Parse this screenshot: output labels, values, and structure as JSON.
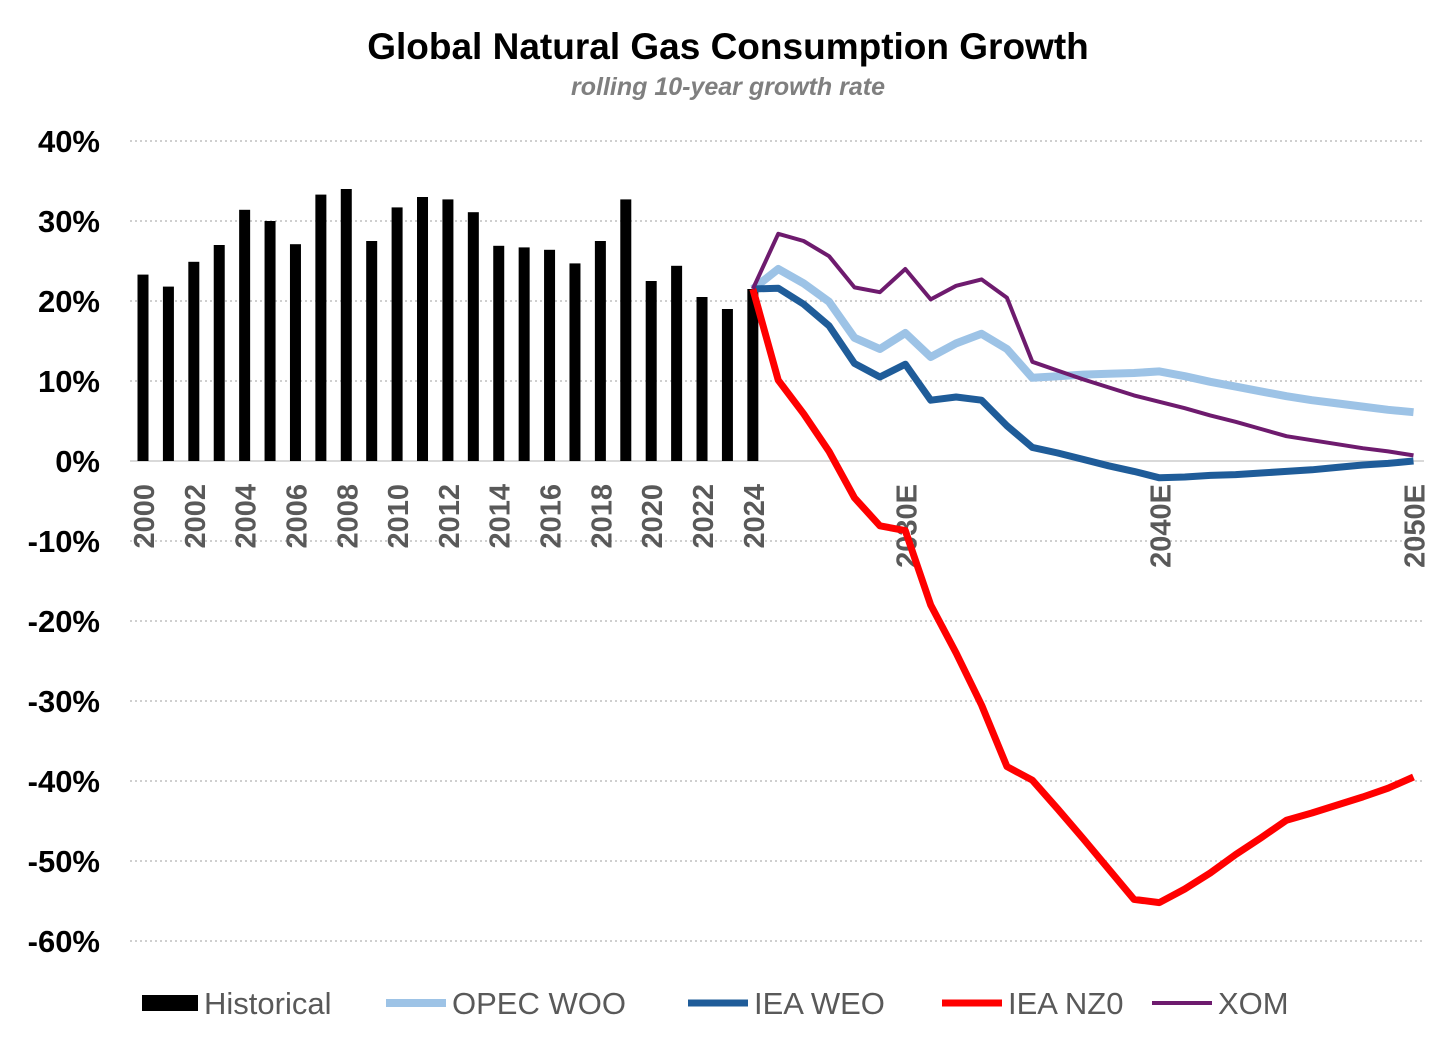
{
  "chart_data": {
    "type": "bar+line",
    "title": "Global Natural Gas Consumption Growth",
    "subtitle": "rolling 10-year growth rate",
    "xlabel": "",
    "ylabel": "",
    "ylim": [
      -60,
      40
    ],
    "yticks": [
      40,
      30,
      20,
      10,
      0,
      -10,
      -20,
      -30,
      -40,
      -50,
      -60
    ],
    "ytick_labels": [
      "40%",
      "30%",
      "20%",
      "10%",
      "0%",
      "-10%",
      "-20%",
      "-30%",
      "-40%",
      "-50%",
      "-60%"
    ],
    "xrange": [
      2000,
      2050
    ],
    "xtick_labels": [
      {
        "year": 2000,
        "label": "2000"
      },
      {
        "year": 2002,
        "label": "2002"
      },
      {
        "year": 2004,
        "label": "2004"
      },
      {
        "year": 2006,
        "label": "2006"
      },
      {
        "year": 2008,
        "label": "2008"
      },
      {
        "year": 2010,
        "label": "2010"
      },
      {
        "year": 2012,
        "label": "2012"
      },
      {
        "year": 2014,
        "label": "2014"
      },
      {
        "year": 2016,
        "label": "2016"
      },
      {
        "year": 2018,
        "label": "2018"
      },
      {
        "year": 2020,
        "label": "2020"
      },
      {
        "year": 2022,
        "label": "2022"
      },
      {
        "year": 2024,
        "label": "2024"
      },
      {
        "year": 2030,
        "label": "2030E"
      },
      {
        "year": 2040,
        "label": "2040E"
      },
      {
        "year": 2050,
        "label": "2050E"
      }
    ],
    "grid": true,
    "legend_position": "bottom",
    "bars": {
      "name": "Historical",
      "color": "#000000",
      "x": [
        2000,
        2001,
        2002,
        2003,
        2004,
        2005,
        2006,
        2007,
        2008,
        2009,
        2010,
        2011,
        2012,
        2013,
        2014,
        2015,
        2016,
        2017,
        2018,
        2019,
        2020,
        2021,
        2022,
        2023,
        2024
      ],
      "values": [
        23.3,
        21.8,
        24.9,
        27.0,
        31.4,
        30.0,
        27.1,
        33.3,
        34.0,
        27.5,
        31.7,
        33.0,
        32.7,
        31.1,
        26.9,
        26.7,
        26.4,
        24.7,
        27.5,
        32.7,
        22.5,
        24.4,
        20.5,
        19.0,
        21.5
      ]
    },
    "x_lines": [
      2024,
      2025,
      2026,
      2027,
      2028,
      2029,
      2030,
      2031,
      2032,
      2033,
      2034,
      2035,
      2036,
      2037,
      2038,
      2039,
      2040,
      2041,
      2042,
      2043,
      2044,
      2045,
      2046,
      2047,
      2048,
      2049,
      2050
    ],
    "series": [
      {
        "name": "OPEC WOO",
        "color": "#9dc3e6",
        "width": 8,
        "values": [
          21.5,
          24.0,
          22.2,
          19.9,
          15.4,
          14.0,
          16.0,
          13.0,
          14.7,
          15.9,
          14.0,
          10.4,
          10.6,
          10.8,
          10.9,
          11.0,
          11.2,
          10.6,
          9.9,
          9.3,
          8.7,
          8.1,
          7.6,
          7.2,
          6.8,
          6.4,
          6.1
        ]
      },
      {
        "name": "IEA WEO",
        "color": "#1f5c99",
        "width": 7,
        "values": [
          21.5,
          21.6,
          19.6,
          16.9,
          12.2,
          10.5,
          12.1,
          7.6,
          8.0,
          7.6,
          4.4,
          1.7,
          1.0,
          0.2,
          -0.6,
          -1.3,
          -2.1,
          -2.0,
          -1.8,
          -1.7,
          -1.5,
          -1.3,
          -1.1,
          -0.8,
          -0.5,
          -0.3,
          0.0
        ]
      },
      {
        "name": "IEA NZ0",
        "color": "#ff0000",
        "width": 7,
        "values": [
          21.5,
          10.1,
          5.9,
          1.2,
          -4.6,
          -8.1,
          -8.7,
          -18.0,
          -24.0,
          -30.5,
          -38.2,
          -39.9,
          -43.5,
          -47.2,
          -51.0,
          -54.8,
          -55.2,
          -53.5,
          -51.5,
          -49.2,
          -47.1,
          -44.9,
          -44.0,
          -43.0,
          -42.0,
          -40.9,
          -39.5
        ]
      },
      {
        "name": "XOM",
        "color": "#6e1b6e",
        "width": 4,
        "values": [
          21.5,
          28.4,
          27.5,
          25.6,
          21.7,
          21.1,
          24.0,
          20.2,
          21.9,
          22.7,
          20.4,
          12.4,
          11.3,
          10.2,
          9.2,
          8.2,
          7.4,
          6.6,
          5.7,
          4.9,
          4.0,
          3.1,
          2.6,
          2.1,
          1.6,
          1.2,
          0.7
        ]
      }
    ]
  }
}
